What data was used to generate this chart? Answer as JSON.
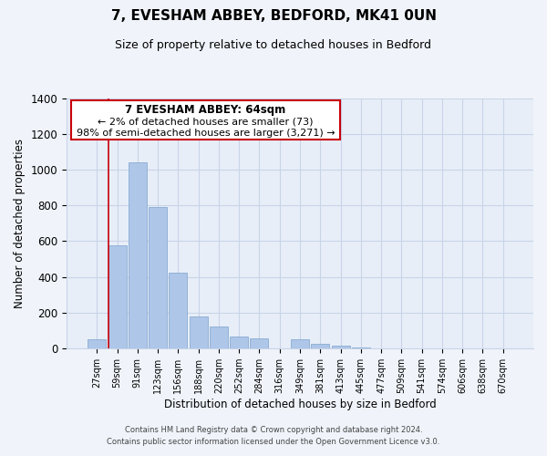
{
  "title": "7, EVESHAM ABBEY, BEDFORD, MK41 0UN",
  "subtitle": "Size of property relative to detached houses in Bedford",
  "xlabel": "Distribution of detached houses by size in Bedford",
  "ylabel": "Number of detached properties",
  "bar_labels": [
    "27sqm",
    "59sqm",
    "91sqm",
    "123sqm",
    "156sqm",
    "188sqm",
    "220sqm",
    "252sqm",
    "284sqm",
    "316sqm",
    "349sqm",
    "381sqm",
    "413sqm",
    "445sqm",
    "477sqm",
    "509sqm",
    "541sqm",
    "574sqm",
    "606sqm",
    "638sqm",
    "670sqm"
  ],
  "bar_values": [
    50,
    575,
    1040,
    790,
    425,
    180,
    125,
    65,
    55,
    0,
    50,
    25,
    15,
    5,
    0,
    0,
    0,
    0,
    0,
    0,
    0
  ],
  "bar_color": "#aec6e8",
  "bar_edge_color": "#7ba3cc",
  "highlight_bar_color": "#c8000a",
  "highlight_index": 1,
  "red_line_index": 1,
  "ylim": [
    0,
    1400
  ],
  "yticks": [
    0,
    200,
    400,
    600,
    800,
    1000,
    1200,
    1400
  ],
  "annotation_title": "7 EVESHAM ABBEY: 64sqm",
  "annotation_line1": "← 2% of detached houses are smaller (73)",
  "annotation_line2": "98% of semi-detached houses are larger (3,271) →",
  "footer1": "Contains HM Land Registry data © Crown copyright and database right 2024.",
  "footer2": "Contains public sector information licensed under the Open Government Licence v3.0.",
  "bg_color": "#f0f4fa",
  "plot_bg_color": "#e8eef8",
  "grid_color": "#c8d4e8",
  "annotation_box_color": "#ffffff",
  "annotation_box_edge": "#c8000a"
}
